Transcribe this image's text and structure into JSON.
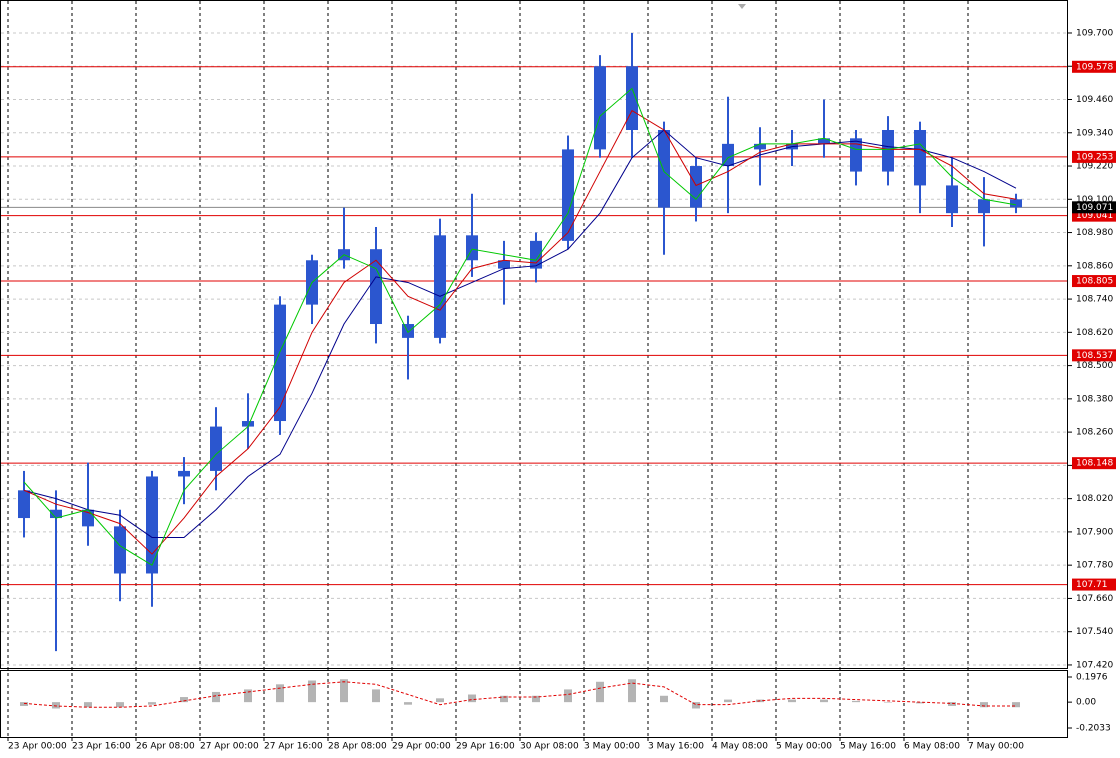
{
  "chart_data": [
    {
      "type": "candlestick",
      "categories": [
        "23 Apr 00:00",
        null,
        "23 Apr 16:00",
        null,
        "26 Apr 08:00",
        null,
        "27 Apr 00:00",
        null,
        "27 Apr 16:00",
        null,
        "28 Apr 08:00",
        null,
        "29 Apr 00:00",
        null,
        "29 Apr 16:00",
        null,
        "30 Apr 08:00",
        null,
        "3 May 00:00",
        null,
        "3 May 16:00",
        null,
        "4 May 08:00",
        null,
        "5 May 00:00",
        null,
        "5 May 16:00",
        null,
        "6 May 08:00",
        null,
        "7 May 00:00",
        null
      ],
      "open": [
        108.05,
        107.95,
        107.98,
        107.92,
        107.75,
        108.1,
        108.12,
        108.28,
        108.3,
        108.72,
        108.88,
        108.92,
        108.65,
        108.6,
        108.97,
        108.88,
        108.85,
        108.95,
        109.28,
        109.58,
        109.35,
        109.07,
        109.22,
        109.3,
        109.28,
        109.3,
        109.32,
        109.2,
        109.35,
        109.15,
        109.05,
        109.1
      ],
      "high": [
        108.12,
        108.05,
        108.15,
        107.98,
        108.12,
        108.17,
        108.35,
        108.4,
        108.75,
        108.9,
        109.07,
        109.0,
        108.68,
        109.03,
        109.12,
        108.95,
        108.98,
        109.33,
        109.62,
        109.7,
        109.38,
        109.25,
        109.47,
        109.36,
        109.35,
        109.46,
        109.35,
        109.4,
        109.38,
        109.25,
        109.18,
        109.12
      ],
      "low": [
        107.88,
        107.47,
        107.85,
        107.65,
        107.63,
        108.0,
        108.05,
        108.2,
        108.25,
        108.65,
        108.85,
        108.58,
        108.45,
        108.58,
        108.82,
        108.72,
        108.8,
        108.92,
        109.25,
        109.25,
        108.9,
        109.02,
        109.05,
        109.15,
        109.22,
        109.25,
        109.15,
        109.15,
        109.05,
        109.0,
        108.93,
        109.05
      ],
      "close": [
        107.95,
        107.98,
        107.92,
        107.75,
        108.1,
        108.12,
        108.28,
        108.3,
        108.72,
        108.88,
        108.92,
        108.65,
        108.6,
        108.97,
        108.88,
        108.85,
        108.95,
        109.28,
        109.58,
        109.35,
        109.07,
        109.22,
        109.3,
        109.28,
        109.3,
        109.32,
        109.2,
        109.35,
        109.15,
        109.05,
        109.1,
        109.071
      ],
      "color": "#2b56cf",
      "series": [
        {
          "color": "#00008b",
          "values": [
            108.05,
            108.02,
            107.98,
            107.96,
            107.88,
            107.88,
            107.98,
            108.1,
            108.18,
            108.4,
            108.65,
            108.82,
            108.8,
            108.75,
            108.8,
            108.85,
            108.86,
            108.92,
            109.05,
            109.25,
            109.35,
            109.25,
            109.22,
            109.26,
            109.29,
            109.3,
            109.31,
            109.29,
            109.28,
            109.25,
            109.2,
            109.14
          ]
        },
        {
          "color": "#d00000",
          "values": [
            108.05,
            108.0,
            107.97,
            107.93,
            107.82,
            107.95,
            108.1,
            108.2,
            108.35,
            108.62,
            108.8,
            108.88,
            108.75,
            108.7,
            108.85,
            108.88,
            108.87,
            108.98,
            109.2,
            109.42,
            109.35,
            109.15,
            109.2,
            109.27,
            109.3,
            109.3,
            109.3,
            109.28,
            109.28,
            109.22,
            109.12,
            109.1
          ]
        },
        {
          "color": "#00c800",
          "values": [
            108.08,
            107.95,
            107.98,
            107.85,
            107.78,
            108.05,
            108.18,
            108.28,
            108.55,
            108.8,
            108.9,
            108.85,
            108.62,
            108.72,
            108.92,
            108.9,
            108.88,
            109.05,
            109.4,
            109.5,
            109.2,
            109.1,
            109.25,
            109.3,
            109.3,
            109.32,
            109.28,
            109.28,
            109.3,
            109.18,
            109.1,
            109.08
          ]
        }
      ],
      "levels": [
        109.578,
        109.253,
        109.041,
        108.805,
        108.537,
        108.148,
        107.71
      ],
      "level_color": "#e00000",
      "current_price": 109.071,
      "ylim": [
        107.409,
        109.819
      ],
      "yticks": [
        {
          "value": 107.42,
          "label": "107.420"
        },
        {
          "value": 107.54,
          "label": "107.540"
        },
        {
          "value": 107.66,
          "label": "107.660"
        },
        {
          "value": 107.78,
          "label": "107.780"
        },
        {
          "value": 107.9,
          "label": "107.900"
        },
        {
          "value": 108.02,
          "label": "108.020"
        },
        {
          "value": 108.14,
          "label": "108.140"
        },
        {
          "value": 108.26,
          "label": "108.260"
        },
        {
          "value": 108.38,
          "label": "108.380"
        },
        {
          "value": 108.5,
          "label": "108.500"
        },
        {
          "value": 108.62,
          "label": "108.620"
        },
        {
          "value": 108.74,
          "label": "108.740"
        },
        {
          "value": 108.86,
          "label": "108.860"
        },
        {
          "value": 108.98,
          "label": "108.980"
        },
        {
          "value": 109.1,
          "label": "109.100"
        },
        {
          "value": 109.22,
          "label": "109.220"
        },
        {
          "value": 109.34,
          "label": "109.340"
        },
        {
          "value": 109.46,
          "label": "109.460"
        },
        {
          "value": 109.58,
          "label": "109.580"
        },
        {
          "value": 109.7,
          "label": "109.700"
        }
      ],
      "grid": true
    },
    {
      "type": "bar",
      "values": [
        -0.03,
        -0.05,
        -0.04,
        -0.04,
        -0.02,
        0.04,
        0.08,
        0.1,
        0.14,
        0.17,
        0.18,
        0.1,
        -0.02,
        0.03,
        0.06,
        0.05,
        0.05,
        0.1,
        0.16,
        0.18,
        0.05,
        -0.05,
        0.02,
        0.02,
        0.02,
        0.02,
        0.01,
        0.0,
        -0.01,
        -0.03,
        -0.04,
        -0.04
      ],
      "color": "#b4b4b4",
      "series": [
        {
          "color": "#e00000",
          "values": [
            -0.01,
            -0.03,
            -0.04,
            -0.04,
            -0.03,
            0.01,
            0.05,
            0.08,
            0.11,
            0.14,
            0.16,
            0.14,
            0.06,
            -0.02,
            0.02,
            0.04,
            0.04,
            0.06,
            0.11,
            0.15,
            0.12,
            -0.02,
            -0.02,
            0.01,
            0.03,
            0.03,
            0.02,
            0.01,
            0.0,
            -0.01,
            -0.03,
            -0.03
          ]
        }
      ],
      "ylim": [
        -0.274,
        0.2526
      ],
      "yticks": [
        0.1976,
        {
          "value": 0,
          "label": "0.00"
        },
        -0.2033
      ]
    }
  ]
}
